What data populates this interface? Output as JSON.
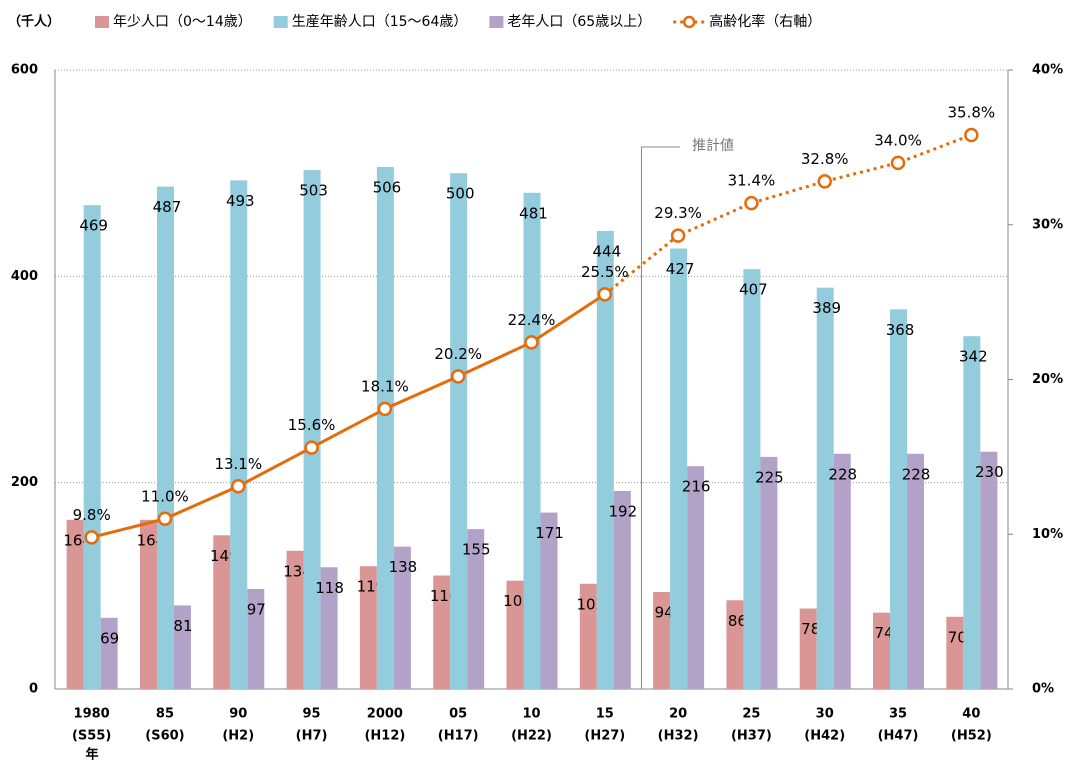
{
  "chart_data": {
    "type": "bar_line",
    "y_axis_label": "（千人）",
    "x_axis_label": "年",
    "categories": [
      "1980",
      "85",
      "90",
      "95",
      "2000",
      "05",
      "10",
      "15",
      "20",
      "25",
      "30",
      "35",
      "40"
    ],
    "category_sublabels": [
      "(S55)",
      "(S60)",
      "(H2)",
      "(H7)",
      "(H12)",
      "(H17)",
      "(H22)",
      "(H27)",
      "(H32)",
      "(H37)",
      "(H42)",
      "(H47)",
      "(H52)"
    ],
    "series": [
      {
        "name": "年少人口（0〜14歳）",
        "color": "#d99694",
        "values": [
          164,
          164,
          149,
          134,
          119,
          110,
          105,
          102,
          94,
          86,
          78,
          74,
          70
        ]
      },
      {
        "name": "生産年齢人口（15〜64歳）",
        "color": "#93cddd",
        "values": [
          469,
          487,
          493,
          503,
          506,
          500,
          481,
          444,
          427,
          407,
          389,
          368,
          342
        ]
      },
      {
        "name": "老年人口（65歳以上）",
        "color": "#b3a2c7",
        "values": [
          69,
          81,
          97,
          118,
          138,
          155,
          171,
          192,
          216,
          225,
          228,
          228,
          230
        ]
      },
      {
        "name": "高齢化率（右軸）",
        "color": "#e46c0a",
        "axis": "y2",
        "values": [
          9.8,
          11.0,
          13.1,
          15.6,
          18.1,
          20.2,
          22.4,
          25.5,
          29.3,
          31.4,
          32.8,
          34.0,
          35.8
        ],
        "value_labels": [
          "9.8%",
          "11.0%",
          "13.1%",
          "15.6%",
          "18.1%",
          "20.2%",
          "22.4%",
          "25.5%",
          "29.3%",
          "31.4%",
          "32.8%",
          "34.0%",
          "35.8%"
        ]
      }
    ],
    "ylim": [
      0,
      600
    ],
    "yticks": [
      0,
      200,
      400,
      600
    ],
    "y2lim": [
      0,
      40
    ],
    "y2ticks": [
      {
        "value": 0,
        "label": "0%"
      },
      {
        "value": 10,
        "label": "10%"
      },
      {
        "value": 20,
        "label": "20%"
      },
      {
        "value": 30,
        "label": "30%"
      },
      {
        "value": 40,
        "label": "40%"
      }
    ],
    "grid": true,
    "annotation": {
      "text": "推計値",
      "from_category": 8
    }
  }
}
